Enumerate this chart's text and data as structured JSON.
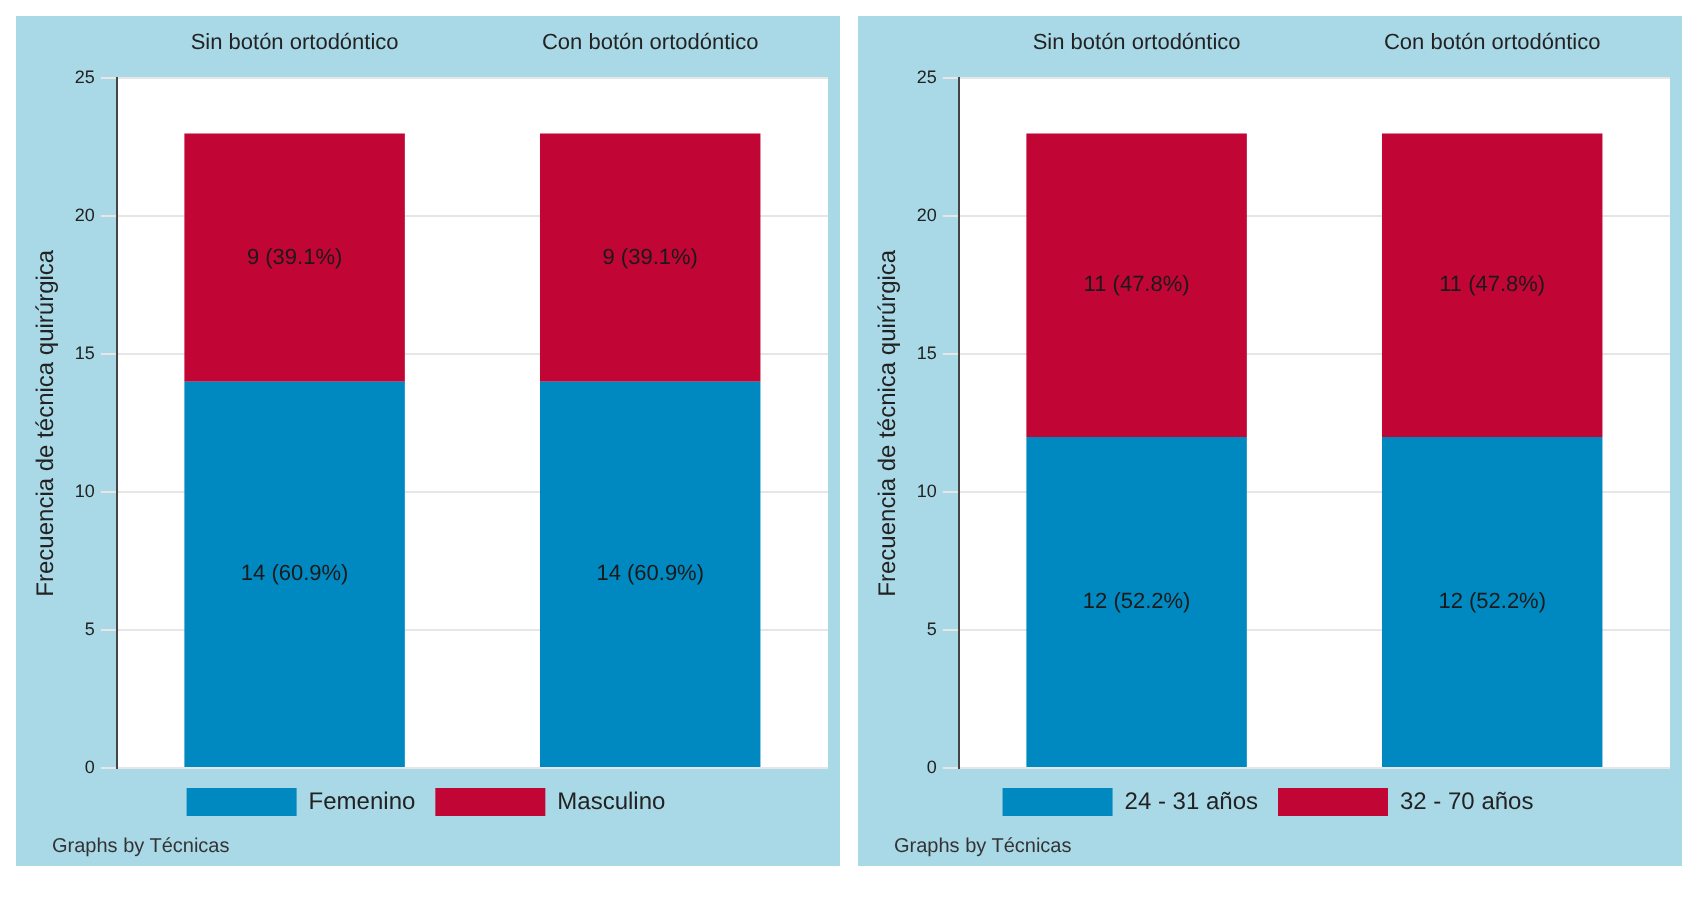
{
  "chart_data": [
    {
      "type": "bar",
      "stacked": true,
      "categories": [
        "Sin botón ortodóntico",
        "Con botón ortodóntico"
      ],
      "ylabel": "Frecuencia de técnica quirúrgica",
      "ylim": [
        0,
        25
      ],
      "yticks": [
        0,
        5,
        10,
        15,
        20,
        25
      ],
      "grid": "y",
      "legend": "bottom",
      "annotations": [
        "Graphs by Técnicas"
      ],
      "series": [
        {
          "name": "Femenino",
          "color": "#0089c0",
          "values": [
            14,
            14
          ],
          "value_labels": [
            "14 (60.9%)",
            "14 (60.9%)"
          ]
        },
        {
          "name": "Masculino",
          "color": "#c10534",
          "values": [
            9,
            9
          ],
          "value_labels": [
            "9 (39.1%)",
            "9 (39.1%)"
          ]
        }
      ]
    },
    {
      "type": "bar",
      "stacked": true,
      "categories": [
        "Sin botón ortodóntico",
        "Con botón ortodóntico"
      ],
      "ylabel": "Frecuencia de técnica quirúrgica",
      "ylim": [
        0,
        25
      ],
      "yticks": [
        0,
        5,
        10,
        15,
        20,
        25
      ],
      "grid": "y",
      "legend": "bottom",
      "annotations": [
        "Graphs by Técnicas"
      ],
      "series": [
        {
          "name": "24 - 31 años",
          "color": "#0089c0",
          "values": [
            12,
            12
          ],
          "value_labels": [
            "12 (52.2%)",
            "12 (52.2%)"
          ]
        },
        {
          "name": "32 - 70 años",
          "color": "#c10534",
          "values": [
            11,
            11
          ],
          "value_labels": [
            "11 (47.8%)",
            "11 (47.8%)"
          ]
        }
      ]
    }
  ]
}
